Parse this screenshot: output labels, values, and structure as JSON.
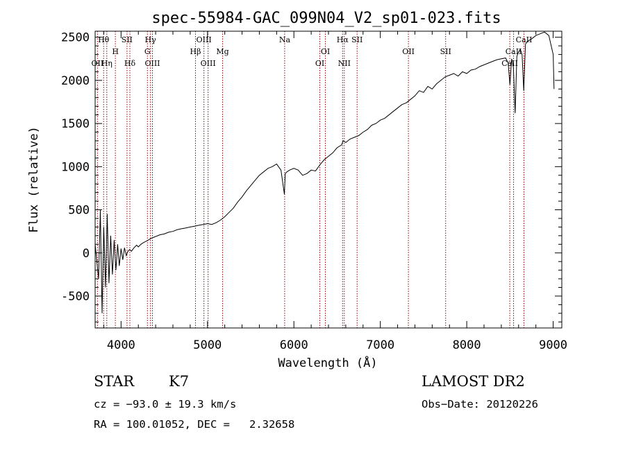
{
  "chart_data": {
    "type": "line",
    "title": "spec-55984-GAC_099N04_V2_sp01-023.fits",
    "xlabel": "Wavelength (Å)",
    "ylabel": "Flux (relative)",
    "xlim": [
      3700,
      9100
    ],
    "ylim": [
      -870,
      2570
    ],
    "xticks": [
      4000,
      5000,
      6000,
      7000,
      8000,
      9000
    ],
    "yticks": [
      -500,
      0,
      500,
      1000,
      1500,
      2000,
      2500
    ],
    "grid": false,
    "series": [
      {
        "values_x": [
          3700,
          3740,
          3760,
          3780,
          3800,
          3820,
          3840,
          3860,
          3880,
          3900,
          3920,
          3940,
          3960,
          3980,
          4000,
          4020,
          4040,
          4060,
          4080,
          4100,
          4120,
          4150,
          4180,
          4200,
          4230,
          4260,
          4300,
          4350,
          4400,
          4450,
          4500,
          4550,
          4600,
          4650,
          4700,
          4750,
          4800,
          4850,
          4900,
          4950,
          5000,
          5050,
          5100,
          5150,
          5200,
          5250,
          5300,
          5350,
          5400,
          5450,
          5500,
          5550,
          5600,
          5650,
          5700,
          5750,
          5800,
          5850,
          5890,
          5900,
          5920,
          5950,
          6000,
          6050,
          6100,
          6150,
          6200,
          6250,
          6300,
          6350,
          6400,
          6450,
          6500,
          6550,
          6570,
          6600,
          6650,
          6700,
          6750,
          6800,
          6850,
          6900,
          6950,
          7000,
          7050,
          7100,
          7150,
          7200,
          7250,
          7300,
          7350,
          7400,
          7450,
          7500,
          7550,
          7600,
          7650,
          7700,
          7750,
          7800,
          7850,
          7900,
          7950,
          8000,
          8050,
          8100,
          8150,
          8200,
          8250,
          8300,
          8350,
          8400,
          8450,
          8480,
          8500,
          8520,
          8540,
          8560,
          8580,
          8600,
          8620,
          8640,
          8660,
          8680,
          8700,
          8750,
          8800,
          8850,
          8900,
          8950,
          9000,
          9010
        ],
        "values_y": [
          100,
          -300,
          500,
          -700,
          300,
          -400,
          450,
          -350,
          200,
          -250,
          150,
          -200,
          100,
          -150,
          50,
          -80,
          60,
          -30,
          20,
          40,
          20,
          60,
          90,
          70,
          100,
          120,
          140,
          170,
          190,
          210,
          220,
          240,
          250,
          270,
          280,
          290,
          300,
          310,
          320,
          330,
          340,
          330,
          350,
          380,
          420,
          470,
          520,
          590,
          650,
          720,
          780,
          840,
          900,
          940,
          980,
          1000,
          1030,
          960,
          680,
          920,
          940,
          960,
          980,
          960,
          900,
          920,
          960,
          950,
          1020,
          1080,
          1120,
          1160,
          1220,
          1250,
          1300,
          1280,
          1320,
          1340,
          1360,
          1400,
          1430,
          1480,
          1500,
          1540,
          1560,
          1600,
          1640,
          1680,
          1720,
          1740,
          1780,
          1820,
          1880,
          1860,
          1930,
          1900,
          1960,
          2000,
          2040,
          2060,
          2080,
          2050,
          2100,
          2080,
          2120,
          2130,
          2160,
          2180,
          2200,
          2220,
          2240,
          2250,
          2260,
          2200,
          1950,
          2250,
          2150,
          1620,
          2280,
          2330,
          2360,
          2300,
          1880,
          2420,
          2450,
          2480,
          2520,
          2540,
          2560,
          2520,
          2300,
          1900
        ]
      }
    ],
    "spectral_lines": [
      {
        "name": "Hθ",
        "wl": 3798,
        "row": 1
      },
      {
        "name": "OII",
        "wl": 3727,
        "row": 3
      },
      {
        "name": "Hη",
        "wl": 3835,
        "row": 3
      },
      {
        "name": "H",
        "wl": 3934,
        "row": 2
      },
      {
        "name": "SII",
        "wl": 4069,
        "row": 1
      },
      {
        "name": "Hδ",
        "wl": 4102,
        "row": 3
      },
      {
        "name": "Hγ",
        "wl": 4340,
        "row": 1
      },
      {
        "name": "G",
        "wl": 4305,
        "row": 2
      },
      {
        "name": "OIII",
        "wl": 4363,
        "row": 3
      },
      {
        "name": "OIII",
        "wl": 4959,
        "row": 1
      },
      {
        "name": "Hβ",
        "wl": 4861,
        "row": 2
      },
      {
        "name": "OIII",
        "wl": 5007,
        "row": 3
      },
      {
        "name": "Mg",
        "wl": 5175,
        "row": 2
      },
      {
        "name": "Na",
        "wl": 5893,
        "row": 1
      },
      {
        "name": "OI",
        "wl": 6364,
        "row": 2
      },
      {
        "name": "OI",
        "wl": 6300,
        "row": 3
      },
      {
        "name": "Hα",
        "wl": 6563,
        "row": 1
      },
      {
        "name": "SII",
        "wl": 6731,
        "row": 1
      },
      {
        "name": "NII",
        "wl": 6583,
        "row": 3
      },
      {
        "name": "OII",
        "wl": 7325,
        "row": 2
      },
      {
        "name": "SII",
        "wl": 7756,
        "row": 2
      },
      {
        "name": "CaII",
        "wl": 8662,
        "row": 1
      },
      {
        "name": "CaII",
        "wl": 8542,
        "row": 2
      },
      {
        "name": "CaII",
        "wl": 8498,
        "row": 3
      }
    ]
  },
  "info": {
    "class_label": "STAR",
    "subclass_label": "K7",
    "survey": "LAMOST DR2",
    "cz": "cz = −93.0 ± 19.3 km/s",
    "obs_date": "Obs−Date: 20120226",
    "coords": "RA = 100.01052, DEC =   2.32658"
  },
  "colors": {
    "line_marker": "#8b0000",
    "spectrum": "#000000"
  }
}
